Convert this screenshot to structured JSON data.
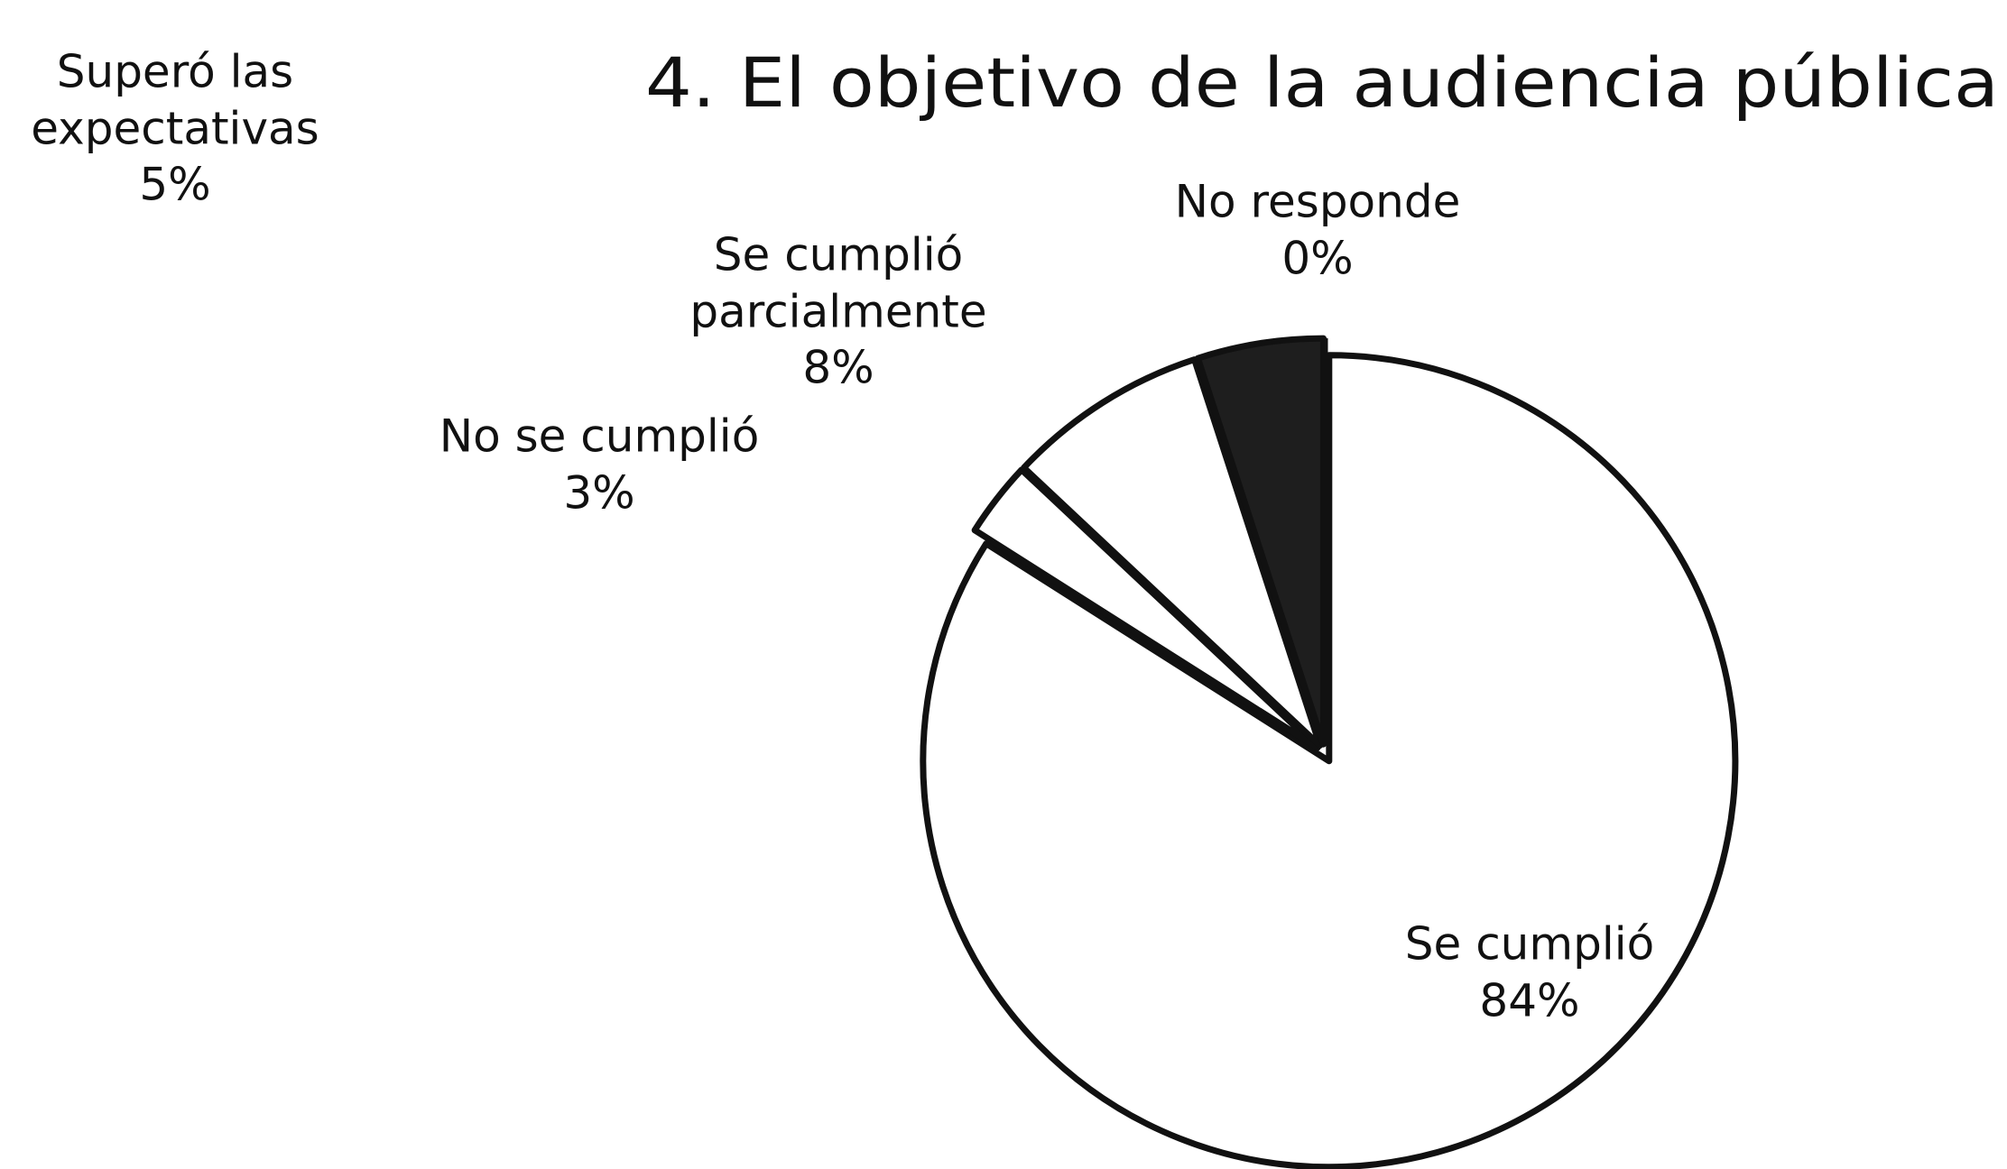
{
  "chart_data": {
    "type": "pie",
    "title": "4. El objetivo de la audiencia pública",
    "categories": [
      "Se cumplió",
      "No se cumplió",
      "Se cumplió parcialmente",
      "Superó las expectativas",
      "No responde"
    ],
    "values": [
      84,
      3,
      8,
      5,
      0
    ],
    "value_labels": [
      "84%",
      "3%",
      "8%",
      "5%",
      "0%"
    ],
    "colors": [
      "#ffffff",
      "#ffffff",
      "#ffffff",
      "#1e1e1e",
      "#ffffff"
    ]
  }
}
